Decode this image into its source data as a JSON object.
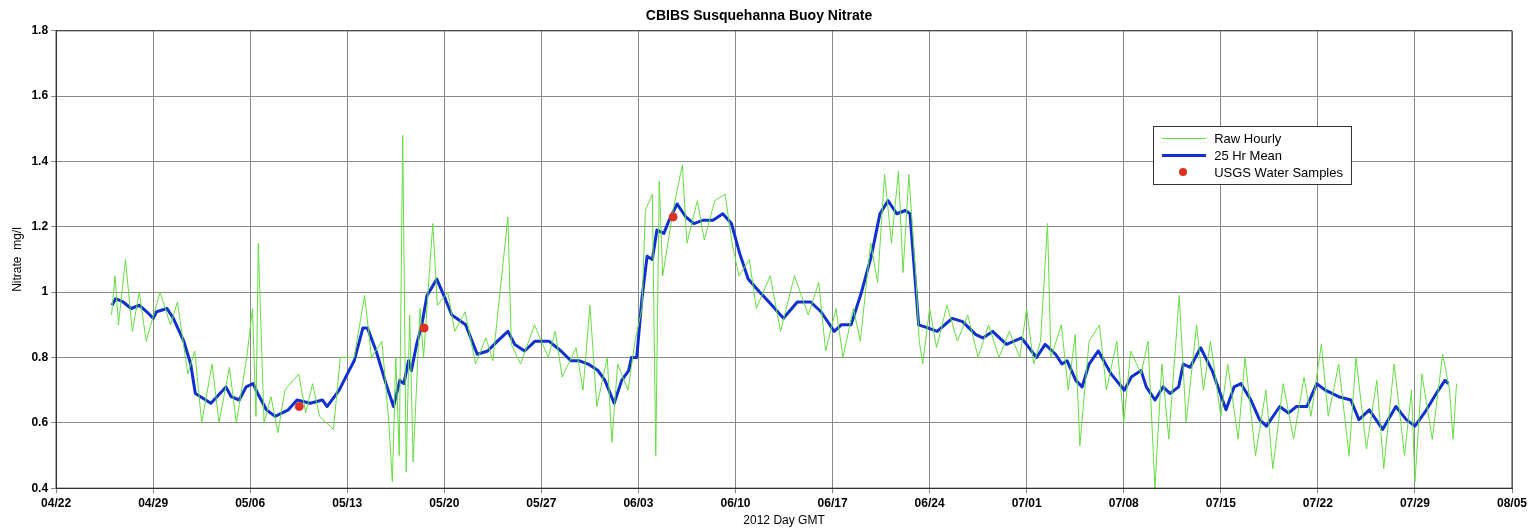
{
  "chart_data": {
    "type": "line",
    "title": "CBIBS Susquehanna Buoy Nitrate",
    "xlabel": "2012 Day GMT",
    "ylabel": "Nitrate  mg/l",
    "xlim": [
      "2012-04-22",
      "2012-08-05"
    ],
    "xticks": [
      {
        "value": "2012-04-22",
        "label": "04/22"
      },
      {
        "value": "2012-04-29",
        "label": "04/29"
      },
      {
        "value": "2012-05-06",
        "label": "05/06"
      },
      {
        "value": "2012-05-13",
        "label": "05/13"
      },
      {
        "value": "2012-05-20",
        "label": "05/20"
      },
      {
        "value": "2012-05-27",
        "label": "05/27"
      },
      {
        "value": "2012-06-03",
        "label": "06/03"
      },
      {
        "value": "2012-06-10",
        "label": "06/10"
      },
      {
        "value": "2012-06-17",
        "label": "06/17"
      },
      {
        "value": "2012-06-24",
        "label": "06/24"
      },
      {
        "value": "2012-07-01",
        "label": "07/01"
      },
      {
        "value": "2012-07-08",
        "label": "07/08"
      },
      {
        "value": "2012-07-15",
        "label": "07/15"
      },
      {
        "value": "2012-07-22",
        "label": "07/22"
      },
      {
        "value": "2012-07-29",
        "label": "07/29"
      },
      {
        "value": "2012-08-05",
        "label": "08/05"
      }
    ],
    "ylim": [
      0.4,
      1.8
    ],
    "yticks": [
      {
        "value": 0.4,
        "label": "0.4"
      },
      {
        "value": 0.6,
        "label": "0.6"
      },
      {
        "value": 0.8,
        "label": "0.8"
      },
      {
        "value": 1,
        "label": "1"
      },
      {
        "value": 1.2,
        "label": "1.2"
      },
      {
        "value": 1.4,
        "label": "1.4"
      },
      {
        "value": 1.6,
        "label": "1.6"
      },
      {
        "value": 1.8,
        "label": "1.8"
      }
    ],
    "grid": true,
    "legend": "top right",
    "line_style": "solid",
    "series": [
      {
        "name": "Raw Hourly",
        "type": "line",
        "color": "#66dd44",
        "x": [
          "2012-04-26T00:00",
          "2012-04-26T06:00",
          "2012-04-26T12:00",
          "2012-04-27T00:00",
          "2012-04-27T12:00",
          "2012-04-28T00:00",
          "2012-04-28T12:00",
          "2012-04-29T12:00",
          "2012-04-30T06:00",
          "2012-04-30T18:00",
          "2012-05-01T12:00",
          "2012-05-02T00:00",
          "2012-05-02T12:00",
          "2012-05-03T06:00",
          "2012-05-03T18:00",
          "2012-05-04T12:00",
          "2012-05-05T00:00",
          "2012-05-05T18:00",
          "2012-05-06T04:00",
          "2012-05-06T10:00",
          "2012-05-06T14:00",
          "2012-05-07T00:00",
          "2012-05-07T12:00",
          "2012-05-08T00:00",
          "2012-05-08T12:00",
          "2012-05-09T12:00",
          "2012-05-10T00:00",
          "2012-05-10T12:00",
          "2012-05-11T00:00",
          "2012-05-12T00:00",
          "2012-05-12T12:00",
          "2012-05-13T12:00",
          "2012-05-14T06:00",
          "2012-05-14T18:00",
          "2012-05-15T12:00",
          "2012-05-16T00:00",
          "2012-05-16T06:00",
          "2012-05-16T12:00",
          "2012-05-16T18:00",
          "2012-05-17T00:00",
          "2012-05-17T06:00",
          "2012-05-17T12:00",
          "2012-05-17T18:00",
          "2012-05-18T06:00",
          "2012-05-18T12:00",
          "2012-05-19T04:00",
          "2012-05-19T12:00",
          "2012-05-20T06:00",
          "2012-05-20T18:00",
          "2012-05-21T12:00",
          "2012-05-22T06:00",
          "2012-05-23T00:00",
          "2012-05-23T12:00",
          "2012-05-24T14:00",
          "2012-05-24T20:00",
          "2012-05-25T12:00",
          "2012-05-26T12:00",
          "2012-05-27T12:00",
          "2012-05-28T00:00",
          "2012-05-28T12:00",
          "2012-05-29T12:00",
          "2012-05-30T00:00",
          "2012-05-30T12:00",
          "2012-05-31T00:00",
          "2012-05-31T18:00",
          "2012-06-01T02:00",
          "2012-06-01T12:00",
          "2012-06-02T06:00",
          "2012-06-02T18:00",
          "2012-06-03T06:00",
          "2012-06-03T12:00",
          "2012-06-04T00:00",
          "2012-06-04T06:00",
          "2012-06-04T12:00",
          "2012-06-04T18:00",
          "2012-06-05T12:00",
          "2012-06-06T04:00",
          "2012-06-06T12:00",
          "2012-06-07T06:00",
          "2012-06-07T18:00",
          "2012-06-08T12:00",
          "2012-06-09T06:00",
          "2012-06-09T18:00",
          "2012-06-10T06:00",
          "2012-06-11T00:00",
          "2012-06-11T12:00",
          "2012-06-12T12:00",
          "2012-06-13T06:00",
          "2012-06-14T06:00",
          "2012-06-15T06:00",
          "2012-06-16T00:00",
          "2012-06-16T12:00",
          "2012-06-17T06:00",
          "2012-06-17T18:00",
          "2012-06-18T12:00",
          "2012-06-19T00:00",
          "2012-06-19T18:00",
          "2012-06-20T06:00",
          "2012-06-20T18:00",
          "2012-06-21T06:00",
          "2012-06-21T18:00",
          "2012-06-22T02:00",
          "2012-06-22T12:00",
          "2012-06-23T00:00",
          "2012-06-23T06:00",
          "2012-06-23T12:00",
          "2012-06-24T00:00",
          "2012-06-24T12:00",
          "2012-06-25T06:00",
          "2012-06-26T00:00",
          "2012-06-26T18:00",
          "2012-06-27T12:00",
          "2012-06-28T06:00",
          "2012-06-29T00:00",
          "2012-06-29T18:00",
          "2012-06-30T12:00",
          "2012-07-01T00:00",
          "2012-07-01T12:00",
          "2012-07-02T00:00",
          "2012-07-02T12:00",
          "2012-07-02T18:00",
          "2012-07-03T12:00",
          "2012-07-04T00:00",
          "2012-07-04T12:00",
          "2012-07-04T20:00",
          "2012-07-05T12:00",
          "2012-07-06T06:00",
          "2012-07-06T18:00",
          "2012-07-07T12:00",
          "2012-07-08T00:00",
          "2012-07-08T12:00",
          "2012-07-09T06:00",
          "2012-07-09T18:00",
          "2012-07-10T06:00",
          "2012-07-10T18:00",
          "2012-07-11T06:00",
          "2012-07-12T00:00",
          "2012-07-12T12:00",
          "2012-07-13T06:00",
          "2012-07-13T18:00",
          "2012-07-14T06:00",
          "2012-07-15T00:00",
          "2012-07-15T12:00",
          "2012-07-16T06:00",
          "2012-07-16T18:00",
          "2012-07-17T12:00",
          "2012-07-18T06:00",
          "2012-07-18T18:00",
          "2012-07-19T12:00",
          "2012-07-20T06:00",
          "2012-07-21T00:00",
          "2012-07-21T12:00",
          "2012-07-22T06:00",
          "2012-07-22T18:00",
          "2012-07-23T12:00",
          "2012-07-24T06:00",
          "2012-07-24T18:00",
          "2012-07-25T12:00",
          "2012-07-26T06:00",
          "2012-07-26T18:00",
          "2012-07-27T12:00",
          "2012-07-28T06:00",
          "2012-07-28T18:00",
          "2012-07-29T00:00",
          "2012-07-29T12:00",
          "2012-07-30T06:00",
          "2012-07-31T00:00",
          "2012-07-31T12:00",
          "2012-07-31T18:00",
          "2012-08-01T00:00"
        ],
        "values": [
          0.93,
          1.05,
          0.9,
          1.1,
          0.88,
          1.0,
          0.85,
          1.0,
          0.9,
          0.97,
          0.75,
          0.82,
          0.6,
          0.78,
          0.6,
          0.77,
          0.6,
          0.8,
          0.95,
          0.62,
          1.15,
          0.6,
          0.68,
          0.57,
          0.7,
          0.75,
          0.63,
          0.72,
          0.62,
          0.58,
          0.8,
          0.8,
          0.99,
          0.8,
          0.85,
          0.6,
          0.42,
          0.8,
          0.5,
          1.48,
          0.45,
          0.93,
          0.48,
          0.95,
          0.8,
          1.21,
          0.96,
          1.0,
          0.88,
          0.94,
          0.78,
          0.86,
          0.79,
          1.23,
          0.84,
          0.78,
          0.9,
          0.8,
          0.88,
          0.74,
          0.83,
          0.7,
          0.96,
          0.65,
          0.8,
          0.54,
          0.78,
          0.7,
          0.85,
          0.95,
          1.25,
          1.3,
          0.5,
          1.34,
          1.05,
          1.25,
          1.39,
          1.15,
          1.28,
          1.16,
          1.28,
          1.3,
          1.15,
          1.05,
          1.1,
          0.95,
          1.05,
          0.88,
          1.05,
          0.93,
          1.03,
          0.82,
          0.95,
          0.8,
          0.95,
          0.85,
          1.15,
          1.03,
          1.36,
          1.15,
          1.37,
          1.06,
          1.36,
          1.05,
          0.85,
          0.78,
          0.95,
          0.83,
          0.96,
          0.85,
          0.93,
          0.8,
          0.9,
          0.8,
          0.88,
          0.8,
          0.95,
          0.78,
          0.85,
          1.21,
          0.8,
          0.9,
          0.7,
          0.87,
          0.53,
          0.85,
          0.9,
          0.7,
          0.85,
          0.6,
          0.82,
          0.75,
          0.85,
          0.4,
          0.78,
          0.55,
          0.99,
          0.6,
          0.9,
          0.7,
          0.85,
          0.62,
          0.78,
          0.55,
          0.8,
          0.5,
          0.7,
          0.46,
          0.72,
          0.55,
          0.74,
          0.62,
          0.84,
          0.62,
          0.78,
          0.5,
          0.8,
          0.52,
          0.73,
          0.46,
          0.78,
          0.5,
          0.7,
          0.42,
          0.75,
          0.55,
          0.81,
          0.7,
          0.55,
          0.72
        ]
      },
      {
        "name": "25 Hr Mean",
        "type": "line",
        "color": "#1030d0",
        "x": [
          "2012-04-26T01:00",
          "2012-04-26T07:00",
          "2012-04-26T20:00",
          "2012-04-27T10:00",
          "2012-04-28T00:00",
          "2012-04-28T13:00",
          "2012-04-29T00:00",
          "2012-04-29T06:00",
          "2012-04-30T00:00",
          "2012-04-30T11:00",
          "2012-05-01T05:00",
          "2012-05-01T17:00",
          "2012-05-02T01:00",
          "2012-05-03T04:00",
          "2012-05-04T06:00",
          "2012-05-04T15:00",
          "2012-05-05T05:00",
          "2012-05-05T17:00",
          "2012-05-06T05:00",
          "2012-05-06T13:00",
          "2012-05-07T04:00",
          "2012-05-07T19:00",
          "2012-05-08T18:00",
          "2012-05-09T09:00",
          "2012-05-10T08:00",
          "2012-05-11T05:00",
          "2012-05-11T13:00",
          "2012-05-12T10:00",
          "2012-05-13T03:00",
          "2012-05-13T12:00",
          "2012-05-14T03:00",
          "2012-05-14T11:00",
          "2012-05-15T02:00",
          "2012-05-15T19:00",
          "2012-05-16T08:00",
          "2012-05-16T19:00",
          "2012-05-17T02:00",
          "2012-05-17T10:00",
          "2012-05-17T15:00",
          "2012-05-18T00:00",
          "2012-05-18T09:00",
          "2012-05-18T18:00",
          "2012-05-19T11:00",
          "2012-05-19T23:00",
          "2012-05-20T13:00",
          "2012-05-21T13:00",
          "2012-05-22T09:00",
          "2012-05-23T03:00",
          "2012-05-23T20:00",
          "2012-05-24T14:00",
          "2012-05-25T02:00",
          "2012-05-25T19:00",
          "2012-05-26T13:00",
          "2012-05-27T06:00",
          "2012-05-27T13:00",
          "2012-05-28T10:00",
          "2012-05-29T03:00",
          "2012-05-29T18:00",
          "2012-05-30T09:00",
          "2012-05-31T02:00",
          "2012-05-31T14:00",
          "2012-06-01T06:00",
          "2012-06-01T19:00",
          "2012-06-02T07:00",
          "2012-06-02T12:00",
          "2012-06-02T21:00",
          "2012-06-03T06:00",
          "2012-06-03T15:00",
          "2012-06-04T00:00",
          "2012-06-04T08:00",
          "2012-06-04T20:00",
          "2012-06-05T05:00",
          "2012-06-05T19:00",
          "2012-06-06T10:00",
          "2012-06-07T00:00",
          "2012-06-07T15:00",
          "2012-06-08T09:00",
          "2012-06-09T02:00",
          "2012-06-09T17:00",
          "2012-06-10T07:00",
          "2012-06-10T22:00",
          "2012-06-11T18:00",
          "2012-06-12T15:00",
          "2012-06-13T11:00",
          "2012-06-14T11:00",
          "2012-06-15T10:00",
          "2012-06-16T04:00",
          "2012-06-17T03:00",
          "2012-06-17T15:00",
          "2012-06-18T08:00",
          "2012-06-19T02:00",
          "2012-06-19T19:00",
          "2012-06-20T10:00",
          "2012-06-21T00:00",
          "2012-06-21T15:00",
          "2012-06-22T06:00",
          "2012-06-22T14:00",
          "2012-06-23T05:00",
          "2012-06-23T22:00",
          "2012-06-24T13:00",
          "2012-06-25T15:00",
          "2012-06-26T09:00",
          "2012-06-27T08:00",
          "2012-06-27T20:00",
          "2012-06-28T13:00",
          "2012-06-29T13:00",
          "2012-06-30T15:00",
          "2012-07-01T17:00",
          "2012-07-02T08:00",
          "2012-07-03T02:00",
          "2012-07-03T13:00",
          "2012-07-03T22:00",
          "2012-07-04T13:00",
          "2012-07-05T00:00",
          "2012-07-05T12:00",
          "2012-07-06T04:00",
          "2012-07-07T02:00",
          "2012-07-08T01:00",
          "2012-07-08T13:00",
          "2012-07-09T06:00",
          "2012-07-09T15:00",
          "2012-07-10T06:00",
          "2012-07-10T20:00",
          "2012-07-11T08:00",
          "2012-07-11T23:00",
          "2012-07-12T07:00",
          "2012-07-12T19:00",
          "2012-07-13T13:00",
          "2012-07-14T09:00",
          "2012-07-15T09:00",
          "2012-07-15T23:00",
          "2012-07-16T11:00",
          "2012-07-17T04:00",
          "2012-07-17T19:00",
          "2012-07-18T07:00",
          "2012-07-19T06:00",
          "2012-07-19T21:00",
          "2012-07-20T11:00",
          "2012-07-21T05:00",
          "2012-07-21T22:00",
          "2012-07-22T13:00",
          "2012-07-23T12:00",
          "2012-07-24T09:00",
          "2012-07-24T23:00",
          "2012-07-25T17:00",
          "2012-07-26T16:00",
          "2012-07-27T15:00",
          "2012-07-28T09:00",
          "2012-07-29T00:00",
          "2012-07-29T20:00",
          "2012-07-30T13:00",
          "2012-07-31T04:00",
          "2012-07-31T10:00"
        ],
        "values": [
          0.96,
          0.98,
          0.97,
          0.95,
          0.96,
          0.94,
          0.92,
          0.94,
          0.95,
          0.92,
          0.85,
          0.78,
          0.69,
          0.66,
          0.71,
          0.68,
          0.67,
          0.71,
          0.72,
          0.69,
          0.64,
          0.62,
          0.64,
          0.67,
          0.66,
          0.67,
          0.65,
          0.7,
          0.76,
          0.79,
          0.89,
          0.89,
          0.82,
          0.72,
          0.65,
          0.73,
          0.72,
          0.79,
          0.76,
          0.84,
          0.9,
          0.99,
          1.04,
          0.99,
          0.93,
          0.9,
          0.81,
          0.82,
          0.85,
          0.88,
          0.84,
          0.82,
          0.85,
          0.85,
          0.85,
          0.82,
          0.79,
          0.79,
          0.78,
          0.76,
          0.73,
          0.66,
          0.73,
          0.76,
          0.8,
          0.8,
          0.98,
          1.11,
          1.1,
          1.19,
          1.18,
          1.22,
          1.27,
          1.23,
          1.21,
          1.22,
          1.22,
          1.24,
          1.21,
          1.12,
          1.04,
          1.0,
          0.96,
          0.92,
          0.97,
          0.97,
          0.94,
          0.88,
          0.9,
          0.9,
          1.0,
          1.11,
          1.24,
          1.28,
          1.24,
          1.25,
          1.24,
          0.9,
          0.89,
          0.88,
          0.92,
          0.91,
          0.87,
          0.86,
          0.88,
          0.84,
          0.86,
          0.8,
          0.84,
          0.81,
          0.78,
          0.79,
          0.73,
          0.71,
          0.78,
          0.82,
          0.75,
          0.7,
          0.74,
          0.76,
          0.71,
          0.67,
          0.71,
          0.69,
          0.71,
          0.78,
          0.77,
          0.83,
          0.76,
          0.64,
          0.71,
          0.72,
          0.67,
          0.61,
          0.59,
          0.65,
          0.63,
          0.65,
          0.65,
          0.72,
          0.7,
          0.68,
          0.67,
          0.61,
          0.64,
          0.58,
          0.65,
          0.61,
          0.59,
          0.64,
          0.69,
          0.73,
          0.72
        ]
      },
      {
        "name": "USGS Water Samples",
        "type": "scatter",
        "marker": "circle",
        "color": "#e03020",
        "x": [
          "2012-05-09T13:00",
          "2012-05-18T13:00",
          "2012-06-05T12:00"
        ],
        "values": [
          0.65,
          0.89,
          1.23
        ]
      }
    ]
  }
}
